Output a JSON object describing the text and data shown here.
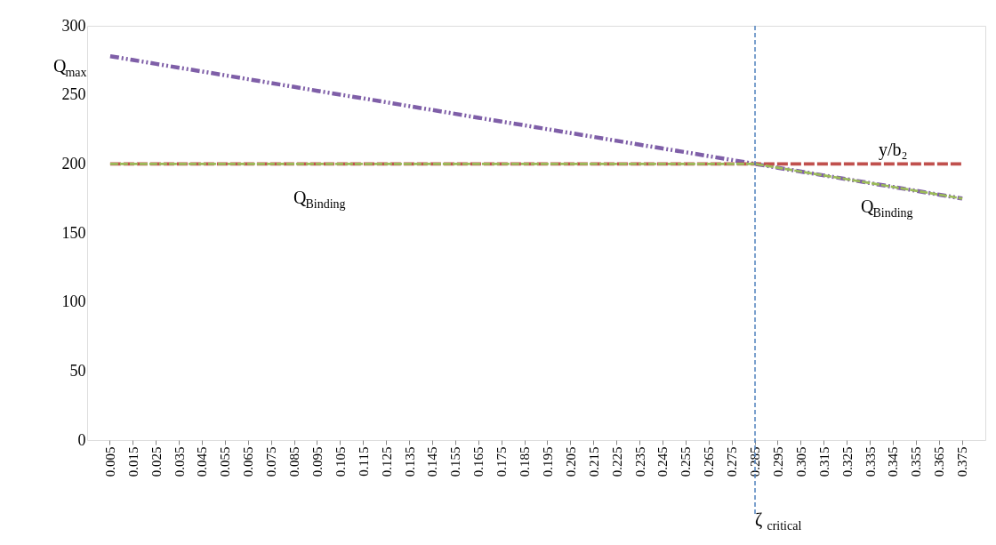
{
  "chart_data": {
    "type": "line",
    "categories": [
      "0.005",
      "0.015",
      "0.025",
      "0.035",
      "0.045",
      "0.055",
      "0.065",
      "0.075",
      "0.085",
      "0.095",
      "0.105",
      "0.115",
      "0.125",
      "0.135",
      "0.145",
      "0.155",
      "0.165",
      "0.175",
      "0.185",
      "0.195",
      "0.205",
      "0.215",
      "0.225",
      "0.235",
      "0.245",
      "0.255",
      "0.265",
      "0.275",
      "0.285",
      "0.295",
      "0.305",
      "0.315",
      "0.325",
      "0.335",
      "0.345",
      "0.355",
      "0.365",
      "0.375"
    ],
    "series": [
      {
        "color": "#7f5fa8",
        "line_style": "dashed",
        "values": [
          278,
          275.2,
          272.4,
          269.6,
          266.9,
          264.1,
          261.3,
          258.5,
          255.7,
          252.9,
          250.1,
          247.4,
          244.6,
          241.8,
          239,
          236.2,
          233.4,
          230.6,
          227.9,
          225.1,
          222.3,
          219.5,
          216.7,
          213.9,
          211.1,
          208.4,
          205.6,
          202.8,
          200,
          197.2,
          194.4,
          191.6,
          188.9,
          186.1,
          183.3,
          180.5,
          177.7,
          174.9
        ]
      },
      {
        "color": "#c0504d",
        "line_style": "dashed",
        "values": [
          200,
          200,
          200,
          200,
          200,
          200,
          200,
          200,
          200,
          200,
          200,
          200,
          200,
          200,
          200,
          200,
          200,
          200,
          200,
          200,
          200,
          200,
          200,
          200,
          200,
          200,
          200,
          200,
          200,
          200,
          200,
          200,
          200,
          200,
          200,
          200,
          200,
          200
        ]
      },
      {
        "color": "#9bbb59",
        "line_style": "dashed",
        "values": [
          200,
          200,
          200,
          200,
          200,
          200,
          200,
          200,
          200,
          200,
          200,
          200,
          200,
          200,
          200,
          200,
          200,
          200,
          200,
          200,
          200,
          200,
          200,
          200,
          200,
          200,
          200,
          200,
          200,
          197.2,
          194.4,
          191.6,
          188.9,
          186.1,
          183.3,
          180.5,
          177.7,
          174.9
        ]
      }
    ],
    "ylim": [
      0,
      300
    ],
    "yticks": [
      0,
      50,
      100,
      150,
      200,
      250,
      300
    ],
    "grid": false,
    "marker": "none",
    "ref_lines": [
      {
        "axis": "x",
        "value": "0.285",
        "label": "ζ$_{critical}$",
        "color": "#4f81bd",
        "line_style": "dashed"
      }
    ],
    "annotations": [
      "Q$_{max}$",
      "Q$_{Binding}$",
      "y/b₂",
      "Q$_{Binding}$"
    ]
  }
}
